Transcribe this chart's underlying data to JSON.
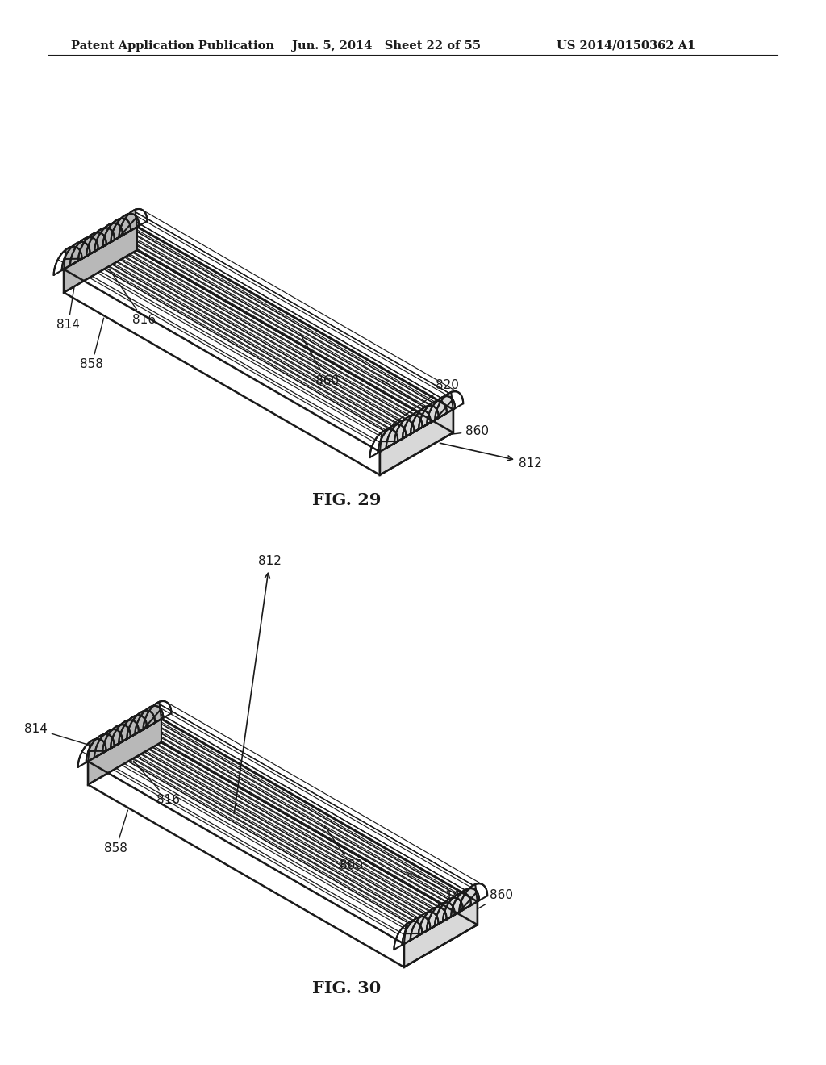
{
  "background_color": "#ffffff",
  "header_left": "Patent Application Publication",
  "header_middle": "Jun. 5, 2014   Sheet 22 of 55",
  "header_right": "US 2014/0150362 A1",
  "line_color": "#1a1a1a",
  "line_width": 1.5,
  "fill_light": "#f0f0f0",
  "fill_mid": "#d8d8d8",
  "fill_dark": "#b8b8b8",
  "fill_white": "#ffffff",
  "label_fontsize": 11,
  "caption_fontsize": 15,
  "fig29_caption": "FIG. 29",
  "fig30_caption": "FIG. 30"
}
